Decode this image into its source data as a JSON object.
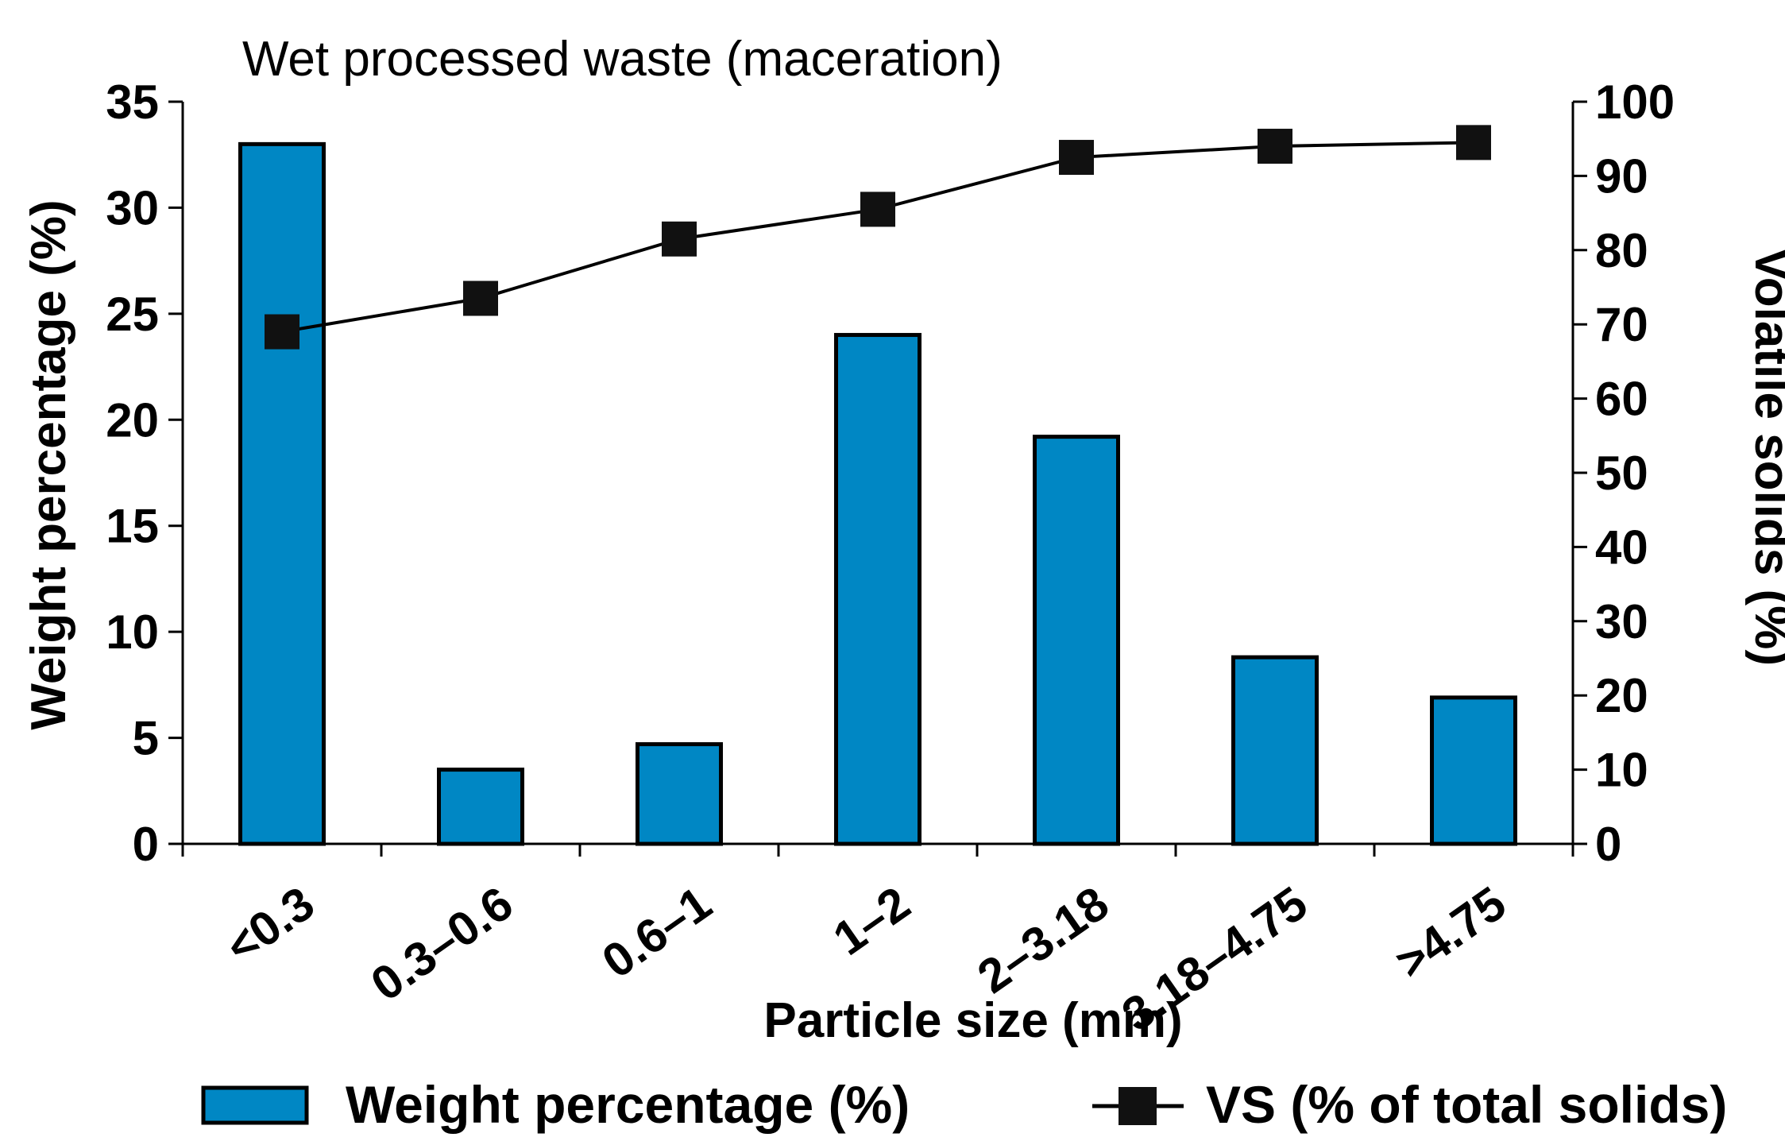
{
  "chart_data": {
    "type": "bar",
    "title": "Wet processed waste (maceration)",
    "xlabel": "Particle size (mm)",
    "ylabel": "Weight percentage (%)",
    "y2label": "Volatile solids (%)",
    "categories": [
      "<0.3",
      "0.3–0.6",
      "0.6–1",
      "1–2",
      "2–3.18",
      "3.18–4.75",
      ">4.75"
    ],
    "ylim": [
      0,
      35
    ],
    "y2lim": [
      0,
      100
    ],
    "yticks": [
      0,
      5,
      10,
      15,
      20,
      25,
      30,
      35
    ],
    "y2ticks": [
      0,
      10,
      20,
      30,
      40,
      50,
      60,
      70,
      80,
      90,
      100
    ],
    "legend_position": "bottom",
    "series": [
      {
        "name": "Weight percentage (%)",
        "kind": "bar",
        "axis": "left",
        "color": "#0087C4",
        "values": [
          33,
          3.5,
          4.7,
          24,
          19.2,
          8.8,
          6.9
        ]
      },
      {
        "name": "VS (% of total solids)",
        "kind": "line",
        "axis": "right",
        "color": "#000000",
        "values": [
          69,
          73.5,
          81.5,
          85.5,
          92.5,
          94,
          94.5
        ]
      }
    ]
  }
}
